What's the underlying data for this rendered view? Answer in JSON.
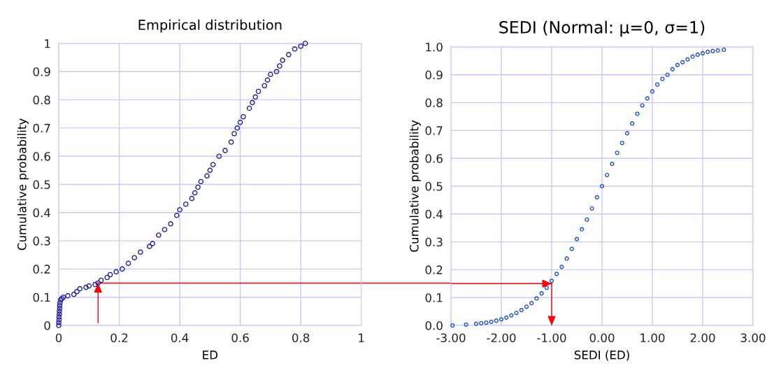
{
  "chart_data": [
    {
      "type": "scatter",
      "title": "Empirical distribution",
      "xlabel": "ED",
      "ylabel": "Cumulative probability",
      "grid": true,
      "legend": false,
      "marker": "circle",
      "xlim": [
        0,
        1
      ],
      "xticks": [
        0,
        0.2,
        0.4,
        0.6,
        0.8,
        1
      ],
      "ylim": [
        0,
        1
      ],
      "yticks": [
        0,
        0.1,
        0.2,
        0.3,
        0.4,
        0.5,
        0.6,
        0.7,
        0.8,
        0.9,
        1
      ],
      "ref_lines": [
        {
          "axis": "x",
          "value": 0.13,
          "color": "#ff0000"
        },
        {
          "axis": "y",
          "value": 0.15,
          "color": "#ff0000"
        }
      ],
      "series": [
        {
          "color": "#2020a0",
          "x": [
            0.0,
            0.0,
            0.001,
            0.001,
            0.002,
            0.002,
            0.003,
            0.003,
            0.004,
            0.006,
            0.01,
            0.015,
            0.03,
            0.05,
            0.06,
            0.07,
            0.09,
            0.1,
            0.12,
            0.13,
            0.14,
            0.16,
            0.17,
            0.19,
            0.21,
            0.23,
            0.25,
            0.27,
            0.3,
            0.31,
            0.33,
            0.35,
            0.37,
            0.39,
            0.4,
            0.42,
            0.44,
            0.45,
            0.46,
            0.47,
            0.49,
            0.5,
            0.51,
            0.53,
            0.55,
            0.57,
            0.58,
            0.59,
            0.6,
            0.61,
            0.63,
            0.64,
            0.65,
            0.66,
            0.68,
            0.69,
            0.7,
            0.72,
            0.73,
            0.74,
            0.76,
            0.78,
            0.8,
            0.815
          ],
          "values": [
            0.0,
            0.01,
            0.02,
            0.03,
            0.04,
            0.05,
            0.06,
            0.07,
            0.08,
            0.09,
            0.095,
            0.1,
            0.105,
            0.11,
            0.12,
            0.13,
            0.135,
            0.14,
            0.145,
            0.15,
            0.16,
            0.17,
            0.18,
            0.19,
            0.2,
            0.22,
            0.24,
            0.26,
            0.28,
            0.29,
            0.32,
            0.34,
            0.36,
            0.39,
            0.41,
            0.43,
            0.45,
            0.47,
            0.49,
            0.51,
            0.53,
            0.55,
            0.57,
            0.6,
            0.62,
            0.65,
            0.68,
            0.7,
            0.72,
            0.74,
            0.77,
            0.79,
            0.81,
            0.83,
            0.85,
            0.87,
            0.89,
            0.9,
            0.92,
            0.94,
            0.96,
            0.98,
            0.99,
            1.0
          ]
        }
      ]
    },
    {
      "type": "scatter",
      "title": "SEDI (Normal: μ=0, σ=1)",
      "xlabel": "SEDI (ED)",
      "ylabel": "Cumulative probability",
      "grid": true,
      "legend": false,
      "marker": "circle",
      "xlim": [
        -3,
        3
      ],
      "xticks": [
        {
          "value": -3,
          "label": "-3.00"
        },
        {
          "value": -2,
          "label": "-2.00"
        },
        {
          "value": -1,
          "label": "-1.00"
        },
        {
          "value": 0,
          "label": "0.00"
        },
        {
          "value": 1,
          "label": "1.00"
        },
        {
          "value": 2,
          "label": "2.00"
        },
        {
          "value": 3,
          "label": "3.00"
        }
      ],
      "ylim": [
        0,
        1
      ],
      "yticks": [
        {
          "value": 0,
          "label": "0.0"
        },
        {
          "value": 0.1,
          "label": "0.1"
        },
        {
          "value": 0.2,
          "label": "0.2"
        },
        {
          "value": 0.3,
          "label": "0.3"
        },
        {
          "value": 0.4,
          "label": "0.4"
        },
        {
          "value": 0.5,
          "label": "0.5"
        },
        {
          "value": 0.6,
          "label": "0.6"
        },
        {
          "value": 0.7,
          "label": "0.7"
        },
        {
          "value": 0.8,
          "label": "0.8"
        },
        {
          "value": 0.9,
          "label": "0.9"
        },
        {
          "value": 1,
          "label": "1.0"
        }
      ],
      "ref_lines": [
        {
          "axis": "y",
          "value": 0.15,
          "color": "#ff0000"
        },
        {
          "axis": "x",
          "value": -1.0,
          "color": "#ff0000"
        }
      ],
      "series": [
        {
          "color": "#1f4fd0",
          "x": [
            -2.97,
            -2.7,
            -2.5,
            -2.4,
            -2.3,
            -2.2,
            -2.1,
            -2.0,
            -1.9,
            -1.8,
            -1.7,
            -1.6,
            -1.5,
            -1.4,
            -1.3,
            -1.2,
            -1.1,
            -1.0,
            -0.9,
            -0.8,
            -0.7,
            -0.6,
            -0.5,
            -0.4,
            -0.3,
            -0.2,
            -0.1,
            0.0,
            0.1,
            0.2,
            0.3,
            0.4,
            0.5,
            0.6,
            0.7,
            0.8,
            0.9,
            1.0,
            1.1,
            1.2,
            1.3,
            1.4,
            1.5,
            1.6,
            1.7,
            1.8,
            1.9,
            2.0,
            2.1,
            2.2,
            2.3,
            2.42
          ],
          "values": [
            0.0,
            0.003,
            0.006,
            0.008,
            0.01,
            0.013,
            0.017,
            0.022,
            0.028,
            0.036,
            0.045,
            0.055,
            0.067,
            0.08,
            0.097,
            0.115,
            0.135,
            0.16,
            0.185,
            0.21,
            0.24,
            0.275,
            0.31,
            0.345,
            0.38,
            0.42,
            0.46,
            0.5,
            0.54,
            0.58,
            0.62,
            0.655,
            0.69,
            0.725,
            0.76,
            0.79,
            0.815,
            0.84,
            0.865,
            0.885,
            0.9,
            0.92,
            0.935,
            0.945,
            0.955,
            0.965,
            0.972,
            0.977,
            0.982,
            0.985,
            0.987,
            0.99
          ]
        }
      ]
    }
  ]
}
